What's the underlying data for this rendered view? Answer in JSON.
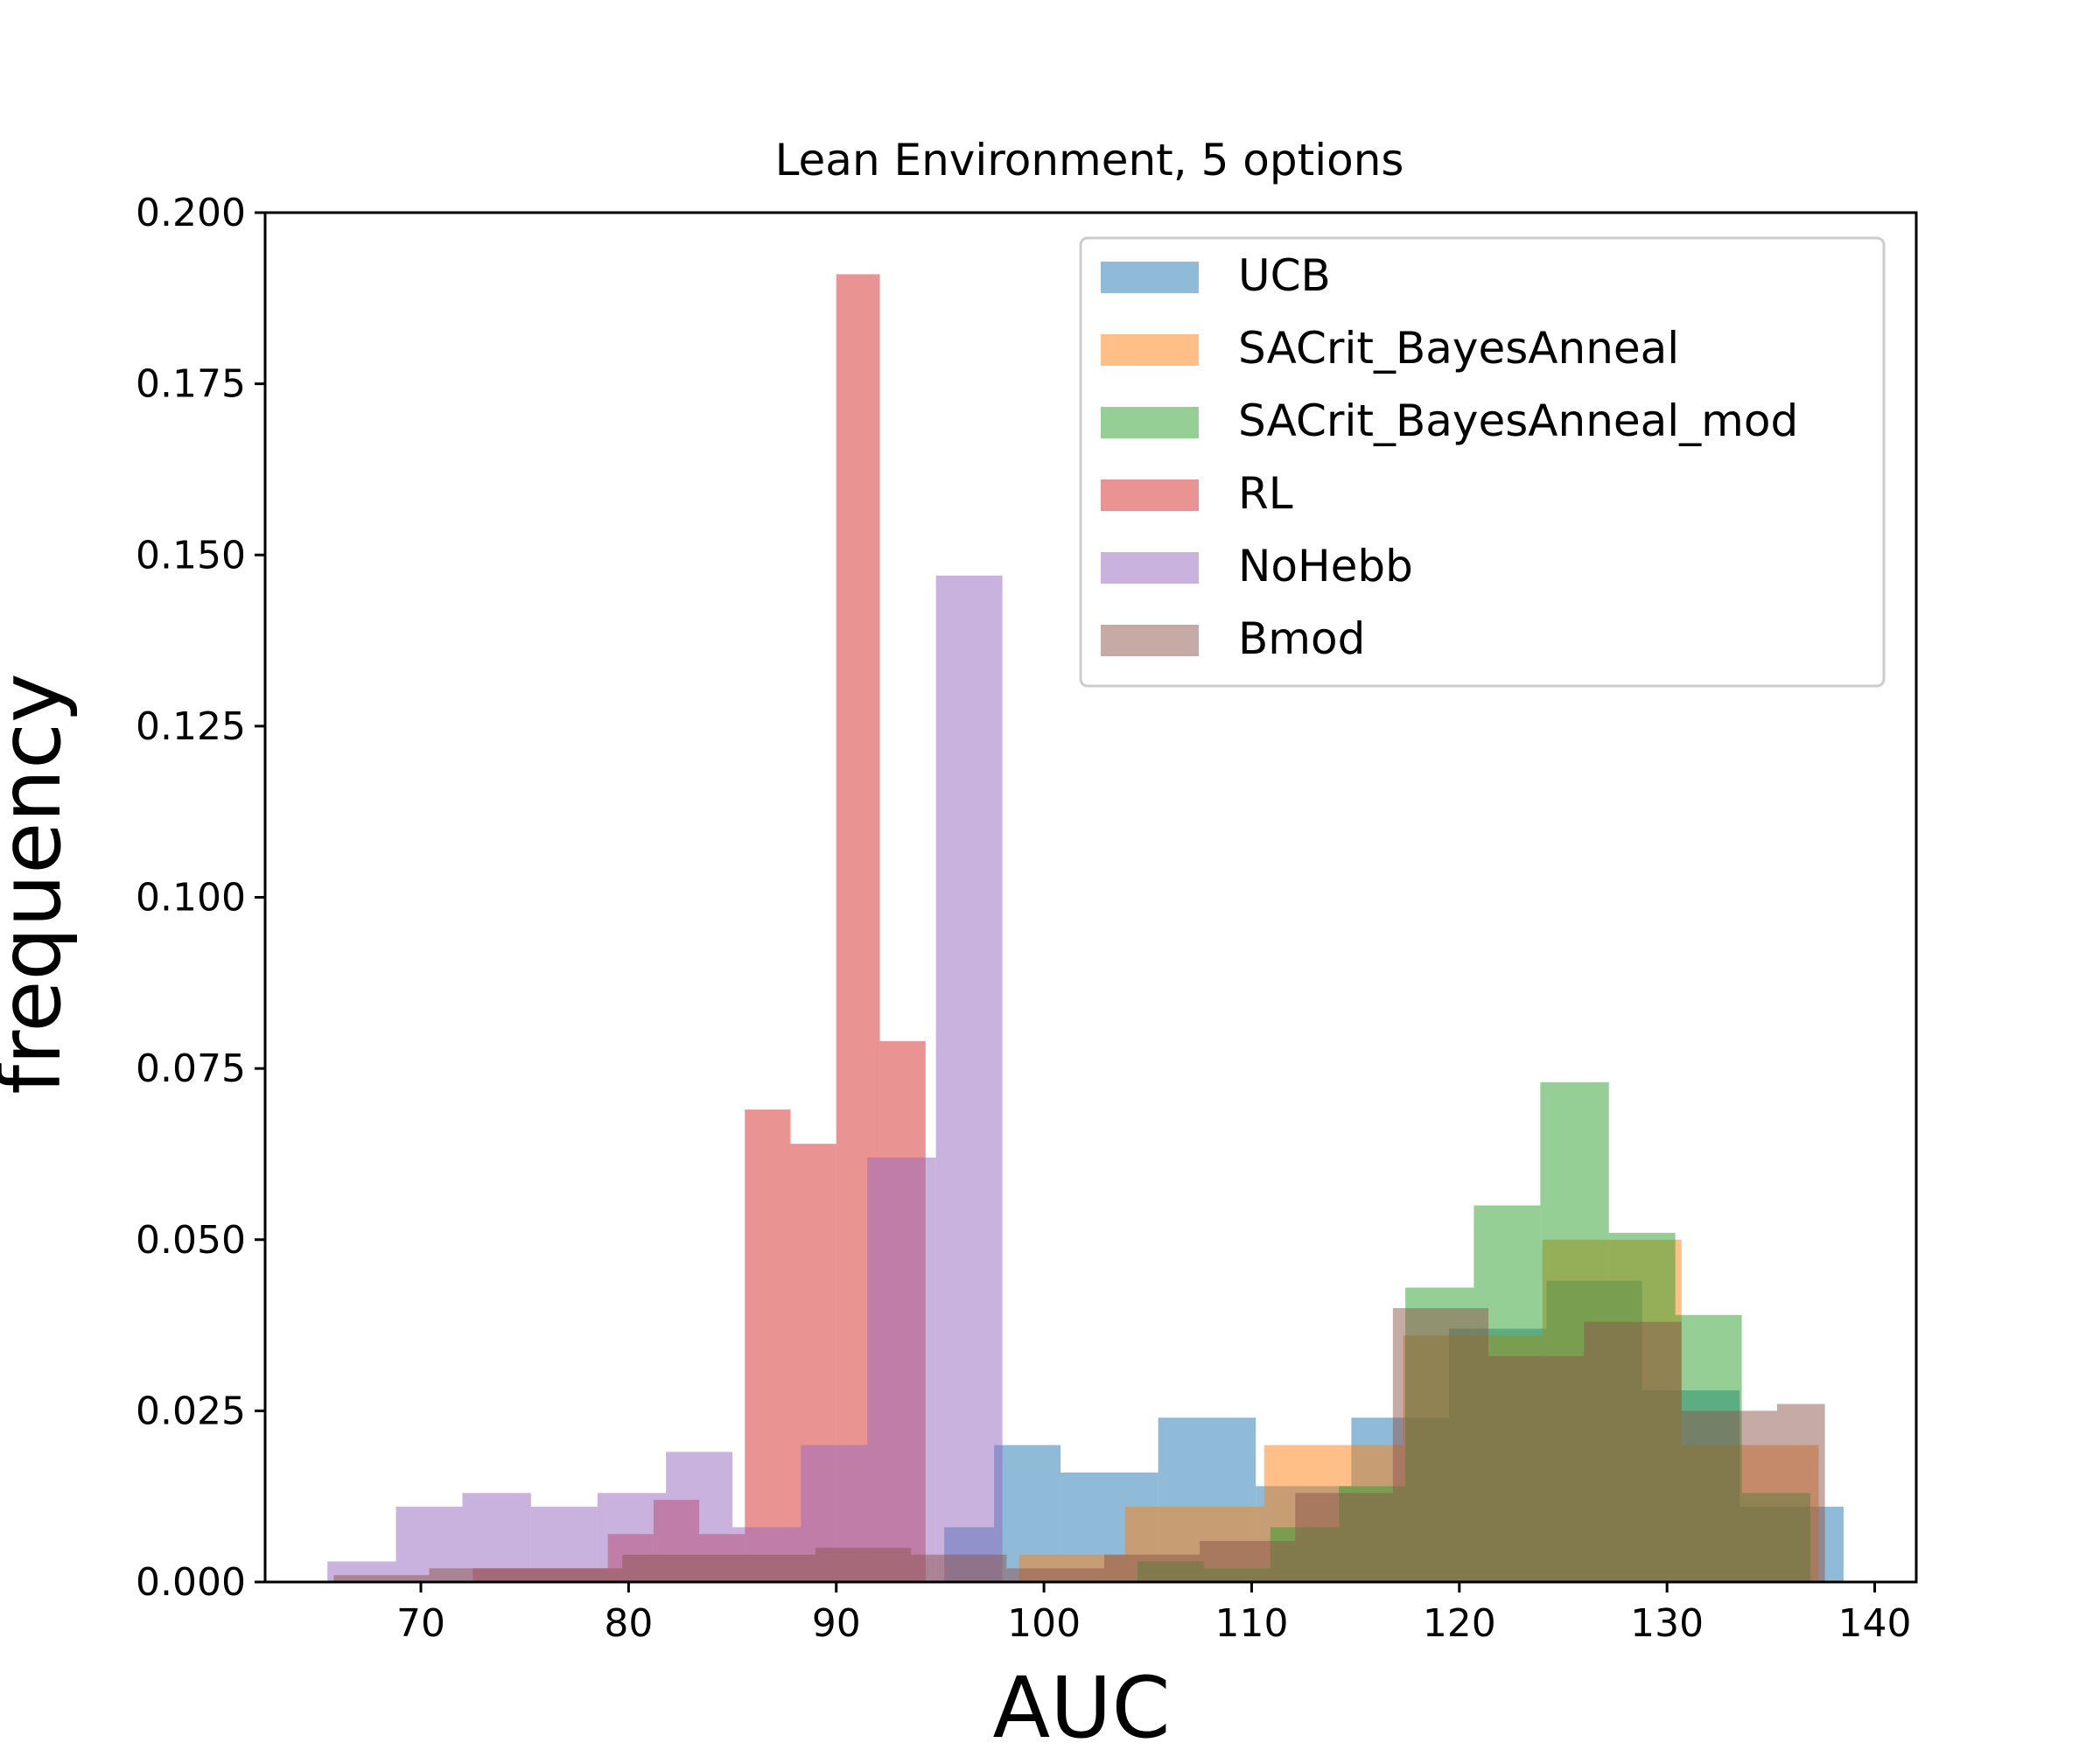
{
  "chart_data": {
    "type": "bar",
    "title": "Lean Environment, 5 options",
    "xlabel": "AUC",
    "ylabel": "frequency",
    "xlim": [
      62.5,
      142
    ],
    "ylim": [
      0,
      0.2
    ],
    "xticks": [
      70,
      80,
      90,
      100,
      110,
      120,
      130,
      140
    ],
    "yticks": [
      0.0,
      0.025,
      0.05,
      0.075,
      0.1,
      0.125,
      0.15,
      0.175,
      0.2
    ],
    "xtick_labels": [
      "70",
      "80",
      "90",
      "100",
      "110",
      "120",
      "130",
      "140"
    ],
    "ytick_labels": [
      "0.000",
      "0.025",
      "0.050",
      "0.075",
      "0.100",
      "0.125",
      "0.150",
      "0.175",
      "0.200"
    ],
    "grid": false,
    "legend_position": "top-right",
    "series": [
      {
        "name": "UCB",
        "color": "#1f77b4",
        "bin_edges": [
          95.2,
          97.6,
          100.8,
          105.5,
          110.2,
          114.8,
          119.5,
          124.2,
          128.8,
          133.5,
          138.5
        ],
        "values": [
          0.008,
          0.02,
          0.016,
          0.024,
          0.014,
          0.024,
          0.037,
          0.044,
          0.028,
          0.011
        ]
      },
      {
        "name": "SACrit_BayesAnneal",
        "color": "#ff7f0e",
        "bin_edges": [
          98.8,
          103.9,
          110.6,
          117.3,
          124.0,
          130.7,
          137.3
        ],
        "values": [
          0.004,
          0.011,
          0.02,
          0.036,
          0.05,
          0.02
        ]
      },
      {
        "name": "SACrit_BayesAnneal_mod",
        "color": "#2ca02c",
        "bin_edges": [
          104.5,
          107.7,
          110.9,
          114.2,
          117.4,
          120.7,
          123.9,
          127.2,
          130.4,
          133.6,
          136.9
        ],
        "values": [
          0.003,
          0.002,
          0.008,
          0.014,
          0.043,
          0.055,
          0.073,
          0.051,
          0.039,
          0.013
        ]
      },
      {
        "name": "RL",
        "color": "#d62728",
        "bin_edges": [
          72.5,
          74.7,
          76.8,
          79.0,
          81.2,
          83.4,
          85.6,
          87.8,
          90.0,
          92.1,
          94.3
        ],
        "values": [
          0.002,
          0.002,
          0.002,
          0.007,
          0.012,
          0.007,
          0.069,
          0.064,
          0.191,
          0.079
        ]
      },
      {
        "name": "NoHebb",
        "color": "#9467bd",
        "bin_edges": [
          65.5,
          68.8,
          72.0,
          75.3,
          78.5,
          81.8,
          85.0,
          88.3,
          91.5,
          94.8,
          98.0
        ],
        "values": [
          0.003,
          0.011,
          0.013,
          0.011,
          0.013,
          0.019,
          0.008,
          0.02,
          0.062,
          0.147
        ]
      },
      {
        "name": "Bmod",
        "color": "#8c564b",
        "bin_edges": [
          65.8,
          70.4,
          75.1,
          79.7,
          84.3,
          89.0,
          93.6,
          98.2,
          102.9,
          107.5,
          112.1,
          116.8,
          121.4,
          126.0,
          130.7,
          135.3,
          137.6
        ],
        "values": [
          0.001,
          0.002,
          0.002,
          0.004,
          0.004,
          0.005,
          0.004,
          0.002,
          0.004,
          0.006,
          0.013,
          0.04,
          0.033,
          0.038,
          0.025,
          0.026
        ]
      }
    ]
  }
}
